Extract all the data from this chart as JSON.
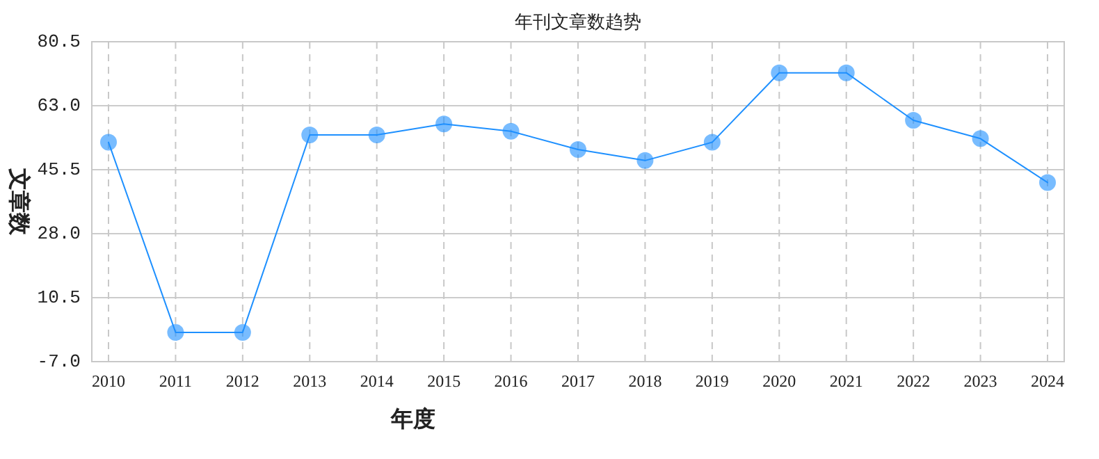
{
  "chart_data": {
    "type": "line",
    "title": "年刊文章数趋势",
    "xlabel": "年度",
    "ylabel": "文章数",
    "categories": [
      "2010",
      "2011",
      "2012",
      "2013",
      "2014",
      "2015",
      "2016",
      "2017",
      "2018",
      "2019",
      "2020",
      "2021",
      "2022",
      "2023",
      "2024"
    ],
    "series": [
      {
        "color": "#1e90ff",
        "values": [
          53,
          1,
          1,
          55,
          55,
          58,
          56,
          51,
          48,
          53,
          72,
          72,
          59,
          54,
          42
        ]
      }
    ],
    "ylim": [
      -7,
      80.5
    ],
    "yticks": [
      {
        "value": -7,
        "label": "-7.0"
      },
      {
        "value": 10.5,
        "label": "10.5"
      },
      {
        "value": 28,
        "label": "28.0"
      },
      {
        "value": 45.5,
        "label": "45.5"
      },
      {
        "value": 63,
        "label": "63.0"
      },
      80.5
    ],
    "grid": true,
    "marker": "circle",
    "line_style": "solid"
  }
}
